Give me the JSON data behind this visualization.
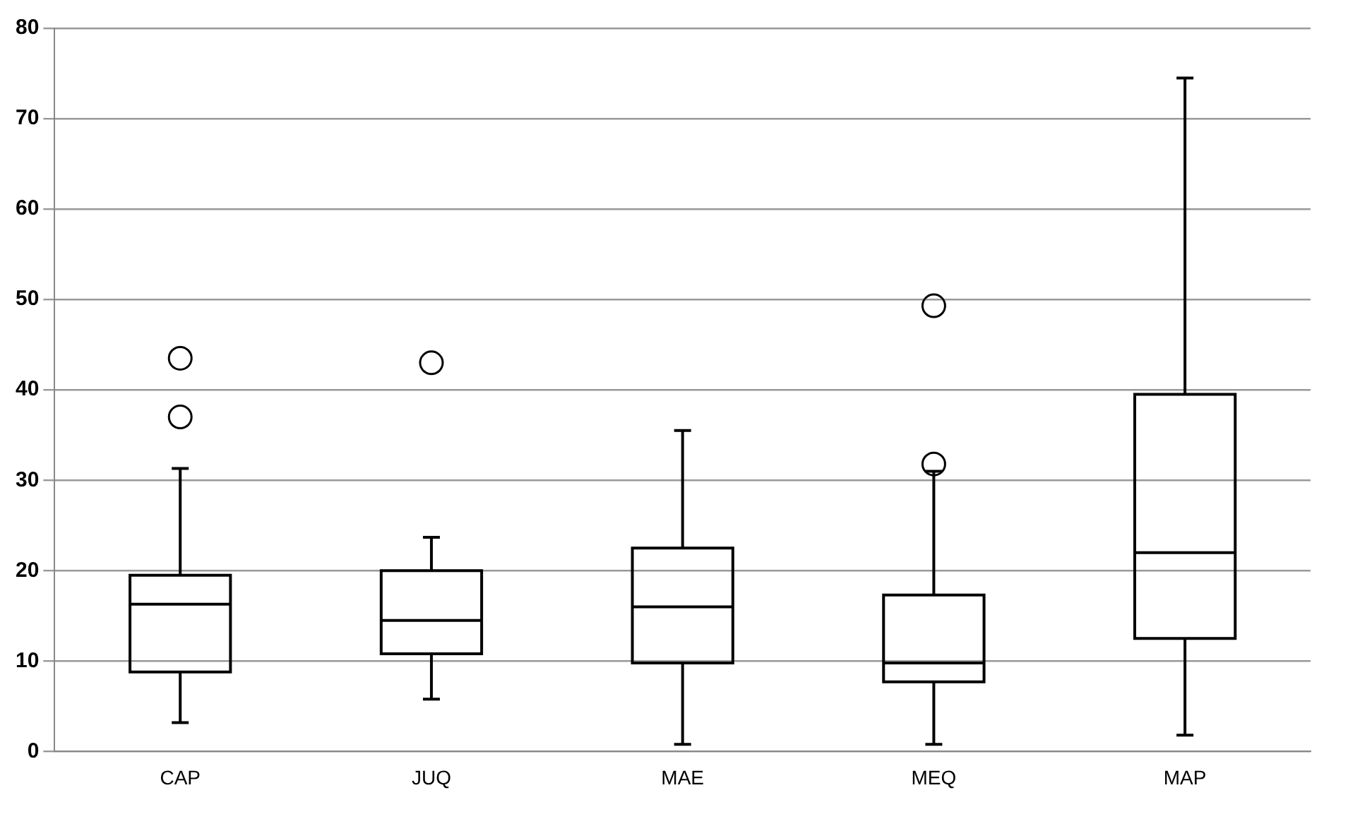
{
  "chart_data": {
    "type": "box",
    "categories": [
      "CAP",
      "JUQ",
      "MAE",
      "MEQ",
      "MAP"
    ],
    "color": "#000000",
    "marker": "circle",
    "boxes": [
      {
        "low": 3.2,
        "q1": 8.8,
        "median": 16.3,
        "q3": 19.5,
        "high": 31.3,
        "outliers": [
          43.5,
          37
        ]
      },
      {
        "low": 5.8,
        "q1": 10.8,
        "median": 14.5,
        "q3": 20,
        "high": 23.7,
        "outliers": [
          43
        ]
      },
      {
        "low": 0.8,
        "q1": 9.8,
        "median": 16,
        "q3": 22.5,
        "high": 35.5
      },
      {
        "low": 0.8,
        "q1": 7.7,
        "median": 9.8,
        "q3": 17.3,
        "high": 31,
        "outliers": [
          49.3,
          31.8
        ]
      },
      {
        "low": 1.8,
        "q1": 12.5,
        "median": 22,
        "q3": 39.5,
        "high": 74.5
      }
    ],
    "ylim": [
      0,
      80
    ],
    "yticks": [
      0,
      10,
      20,
      30,
      40,
      50,
      60,
      70,
      80
    ],
    "grid": "y"
  }
}
